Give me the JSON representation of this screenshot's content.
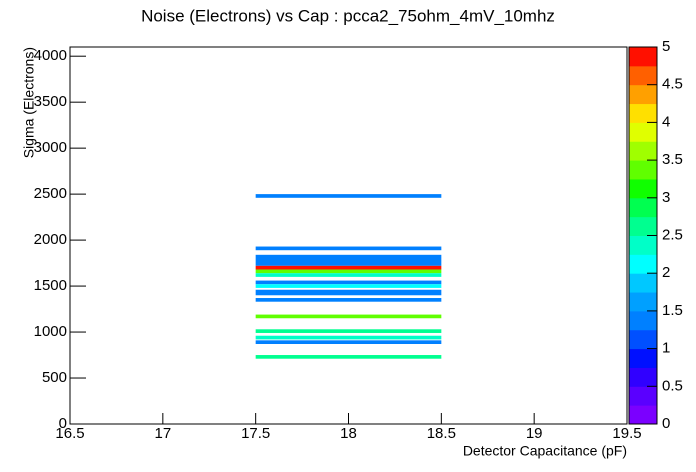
{
  "chart_data": {
    "type": "heatmap",
    "title": "Noise (Electrons) vs Cap : pcca2_75ohm_4mV_10mhz",
    "x_label": "Detector Capacitance (pF)",
    "y_label": "Sigma (Electrons)",
    "xlim": [
      16.5,
      19.5
    ],
    "xticks": [
      16.5,
      17,
      17.5,
      18,
      18.5,
      19,
      19.5
    ],
    "ylim": [
      0,
      4100
    ],
    "yticks": [
      0,
      500,
      1000,
      1500,
      2000,
      2500,
      3000,
      3500,
      4000
    ],
    "zlim": [
      0,
      5
    ],
    "zticks": [
      0,
      0.5,
      1,
      1.5,
      2,
      2.5,
      3,
      3.5,
      4,
      4.5,
      5
    ],
    "palette": [
      "#7b00ff",
      "#5a00ff",
      "#3000ff",
      "#0010ff",
      "#0050ff",
      "#0080ff",
      "#00a0ff",
      "#00c8ff",
      "#00ffff",
      "#00ffc8",
      "#00ff90",
      "#00ff50",
      "#10ff00",
      "#60ff00",
      "#a0ff00",
      "#e0ff00",
      "#ffe000",
      "#ffa000",
      "#ff6000",
      "#ff1000"
    ],
    "cells": [
      {
        "x_range": [
          17.5,
          18.5
        ],
        "y_range": [
          2460,
          2500
        ],
        "z": 1.3
      },
      {
        "x_range": [
          17.5,
          18.5
        ],
        "y_range": [
          1890,
          1930
        ],
        "z": 1.3
      },
      {
        "x_range": [
          17.5,
          18.5
        ],
        "y_range": [
          1720,
          1840
        ],
        "z": 1.3
      },
      {
        "x_range": [
          17.5,
          18.5
        ],
        "y_range": [
          1680,
          1720
        ],
        "z": 4.9
      },
      {
        "x_range": [
          17.5,
          18.5
        ],
        "y_range": [
          1640,
          1680
        ],
        "z": 3.3
      },
      {
        "x_range": [
          17.5,
          18.5
        ],
        "y_range": [
          1600,
          1640
        ],
        "z": 2.4
      },
      {
        "x_range": [
          17.5,
          18.5
        ],
        "y_range": [
          1520,
          1560
        ],
        "z": 1.3
      },
      {
        "x_range": [
          17.5,
          18.5
        ],
        "y_range": [
          1480,
          1520
        ],
        "z": 2.1
      },
      {
        "x_range": [
          17.5,
          18.5
        ],
        "y_range": [
          1400,
          1460
        ],
        "z": 1.3
      },
      {
        "x_range": [
          17.5,
          18.5
        ],
        "y_range": [
          1330,
          1370
        ],
        "z": 1.3
      },
      {
        "x_range": [
          17.5,
          18.5
        ],
        "y_range": [
          1150,
          1190
        ],
        "z": 3.3
      },
      {
        "x_range": [
          17.5,
          18.5
        ],
        "y_range": [
          990,
          1030
        ],
        "z": 2.6
      },
      {
        "x_range": [
          17.5,
          18.5
        ],
        "y_range": [
          920,
          960
        ],
        "z": 2.3
      },
      {
        "x_range": [
          17.5,
          18.5
        ],
        "y_range": [
          870,
          910
        ],
        "z": 1.3
      },
      {
        "x_range": [
          17.5,
          18.5
        ],
        "y_range": [
          710,
          750
        ],
        "z": 2.6
      }
    ]
  }
}
